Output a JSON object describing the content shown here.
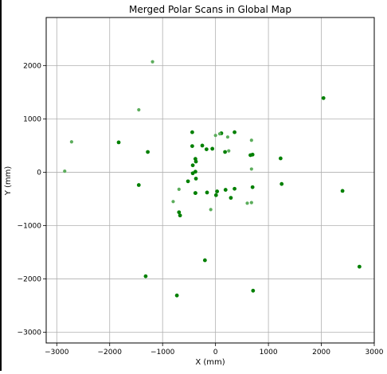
{
  "chart_data": {
    "type": "scatter",
    "title": "Merged Polar Scans in Global Map",
    "xlabel": "X (mm)",
    "ylabel": "Y (mm)",
    "xlim": [
      -3200,
      3000
    ],
    "ylim": [
      -3200,
      2900
    ],
    "xticks": [
      -3000,
      -2000,
      -1000,
      0,
      1000,
      2000,
      3000
    ],
    "yticks": [
      -3000,
      -2000,
      -1000,
      0,
      1000,
      2000
    ],
    "grid": true,
    "colors": {
      "dark": "#008000",
      "light": "#5cad5c",
      "grid": "#b0b0b0"
    },
    "series": [
      {
        "color": "dark",
        "x": [
          -440,
          -440,
          -380,
          -370,
          -250,
          -170,
          -60,
          110,
          180,
          360,
          660,
          700,
          -430,
          -380,
          -370,
          -380,
          -430,
          -520,
          -380,
          -160,
          10,
          30,
          190,
          360,
          290,
          700,
          -690,
          -670,
          1230,
          1250,
          2400,
          2040,
          2720,
          -1280,
          -1450,
          -1830,
          -200,
          -730,
          710,
          -1320
        ],
        "y": [
          750,
          490,
          250,
          200,
          500,
          430,
          440,
          730,
          380,
          750,
          320,
          330,
          130,
          10,
          -120,
          -390,
          -20,
          -170,
          -390,
          -380,
          -430,
          -360,
          -330,
          -310,
          -480,
          -280,
          -750,
          -810,
          260,
          -220,
          -350,
          1390,
          -1770,
          380,
          -240,
          560,
          -1650,
          -2310,
          -2220,
          -1950
        ]
      },
      {
        "color": "light",
        "x": [
          -1190,
          -1450,
          -2720,
          -2850,
          -690,
          -800,
          0,
          80,
          230,
          600,
          680,
          680,
          -90,
          680,
          250
        ],
        "y": [
          2070,
          1170,
          570,
          20,
          -320,
          -550,
          690,
          720,
          660,
          -580,
          600,
          60,
          -700,
          -570,
          400
        ]
      }
    ]
  }
}
